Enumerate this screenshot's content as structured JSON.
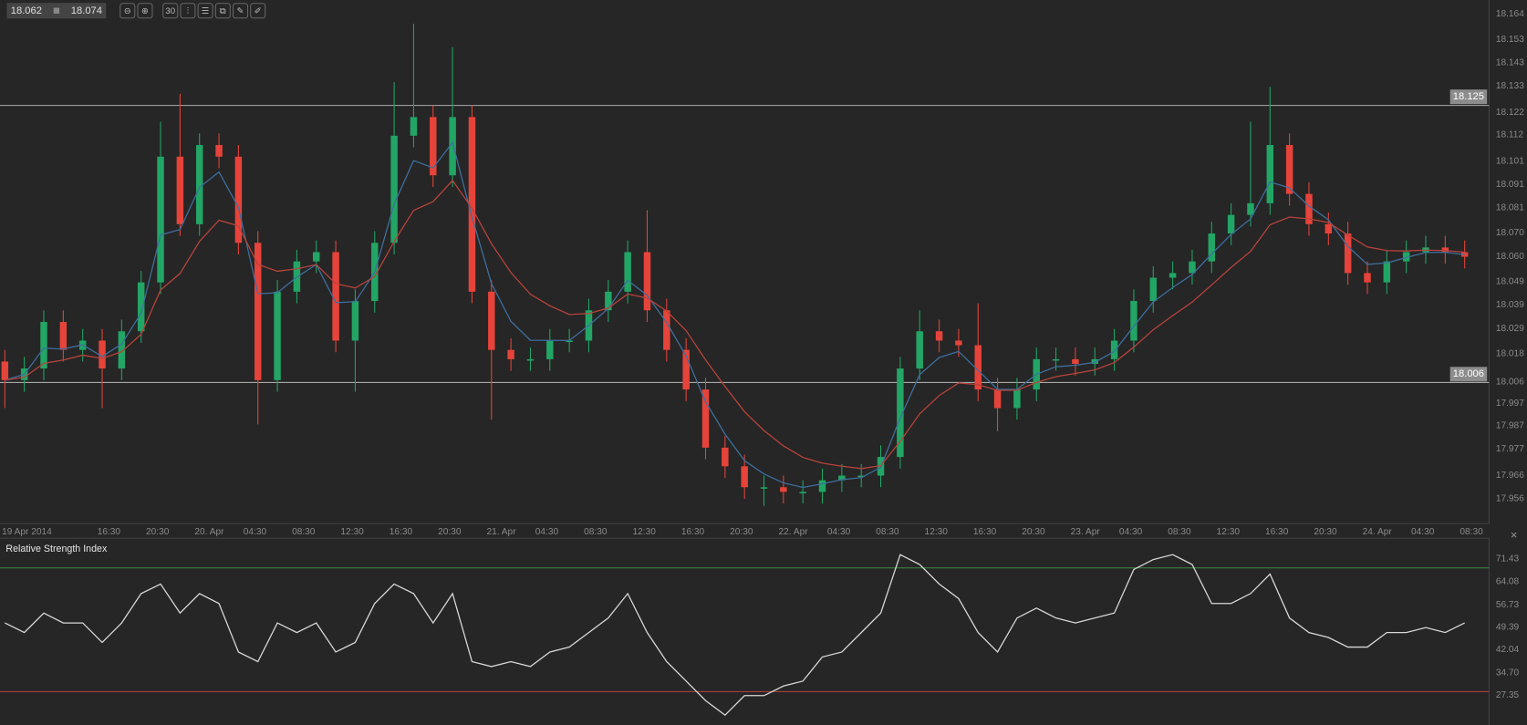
{
  "toolbar": {
    "bid": "18.062",
    "ask": "18.074",
    "icons": [
      {
        "name": "zoom-out-icon",
        "glyph": "⊖"
      },
      {
        "name": "zoom-in-icon",
        "glyph": "⊕"
      },
      {
        "name": "timeframe-icon",
        "glyph": "30"
      },
      {
        "name": "chart-type-icon",
        "glyph": "⫶"
      },
      {
        "name": "indicators-icon",
        "glyph": "☰"
      },
      {
        "name": "templates-icon",
        "glyph": "⧉"
      },
      {
        "name": "edit-icon",
        "glyph": "✎"
      },
      {
        "name": "draw-icon",
        "glyph": "✐"
      }
    ]
  },
  "colors": {
    "background": "#262626",
    "up": "#22a565",
    "down": "#e6433a",
    "ma_fast": "#3e6f9e",
    "ma_slow": "#b8433b",
    "rsi_line": "#d8d8d8",
    "rsi_upper": "#3f8a45",
    "rsi_lower": "#b8433b",
    "level_line": "#a8a8a8"
  },
  "chart_data": [
    {
      "type": "candlestick",
      "ylim": [
        17.9454,
        18.1703
      ],
      "y_ticks": [
        "18.164",
        "18.153",
        "18.143",
        "18.133",
        "18.122",
        "18.112",
        "18.101",
        "18.091",
        "18.081",
        "18.070",
        "18.060",
        "18.049",
        "18.039",
        "18.029",
        "18.018",
        "18.006",
        "17.997",
        "17.987",
        "17.977",
        "17.966",
        "17.956"
      ],
      "x_tick_labels": [
        "19 Apr 2014",
        "16:30",
        "20:30",
        "20. Apr",
        "04:30",
        "08:30",
        "12:30",
        "16:30",
        "20:30",
        "21. Apr",
        "04:30",
        "08:30",
        "12:30",
        "16:30",
        "20:30",
        "22. Apr",
        "04:30",
        "08:30",
        "12:30",
        "16:30",
        "20:30",
        "23. Apr",
        "04:30",
        "08:30",
        "12:30",
        "16:30",
        "20:30",
        "24. Apr",
        "04:30",
        "08:30"
      ],
      "levels": [
        {
          "value": 18.125,
          "label": "18.125"
        },
        {
          "value": 18.006,
          "label": "18.006"
        }
      ],
      "moving_averages": [
        "fast (blue)",
        "slow (red)"
      ],
      "open": [
        18.015,
        18.007,
        18.012,
        18.032,
        18.02,
        18.024,
        18.012,
        18.028,
        18.049,
        18.103,
        18.074,
        18.108,
        18.103,
        18.066,
        18.007,
        18.045,
        18.058,
        18.062,
        18.024,
        18.041,
        18.066,
        18.112,
        18.12,
        18.095,
        18.12,
        18.045,
        18.02,
        18.016,
        18.016,
        18.024,
        18.024,
        18.037,
        18.045,
        18.062,
        18.037,
        18.02,
        18.003,
        17.978,
        17.97,
        17.961,
        17.961,
        17.959,
        17.959,
        17.964,
        17.966,
        17.966,
        17.974,
        18.012,
        18.028,
        18.024,
        18.022,
        18.003,
        17.995,
        18.003,
        18.016,
        18.016,
        18.014,
        18.016,
        18.024,
        18.041,
        18.051,
        18.053,
        18.058,
        18.07,
        18.078,
        18.083,
        18.108,
        18.087,
        18.074,
        18.07,
        18.053,
        18.049,
        18.058,
        18.062,
        18.064,
        18.062
      ],
      "high": [
        18.02,
        18.017,
        18.037,
        18.037,
        18.029,
        18.029,
        18.033,
        18.054,
        18.118,
        18.13,
        18.113,
        18.113,
        18.108,
        18.071,
        18.05,
        18.063,
        18.067,
        18.067,
        18.046,
        18.071,
        18.135,
        18.16,
        18.125,
        18.15,
        18.125,
        18.05,
        18.025,
        18.021,
        18.029,
        18.029,
        18.042,
        18.05,
        18.067,
        18.08,
        18.042,
        18.025,
        18.008,
        17.983,
        17.975,
        17.966,
        17.966,
        17.964,
        17.969,
        17.971,
        17.971,
        17.979,
        18.017,
        18.037,
        18.033,
        18.029,
        18.04,
        18.008,
        18.008,
        18.021,
        18.021,
        18.021,
        18.021,
        18.029,
        18.046,
        18.056,
        18.058,
        18.063,
        18.075,
        18.083,
        18.118,
        18.133,
        18.113,
        18.092,
        18.079,
        18.075,
        18.058,
        18.063,
        18.067,
        18.069,
        18.069,
        18.067
      ],
      "low": [
        17.995,
        18.002,
        18.007,
        18.015,
        18.015,
        17.995,
        18.007,
        18.023,
        18.044,
        18.069,
        18.069,
        18.098,
        18.061,
        17.988,
        18.002,
        18.04,
        18.053,
        18.019,
        18.002,
        18.036,
        18.061,
        18.107,
        18.09,
        18.09,
        18.04,
        17.99,
        18.011,
        18.011,
        18.011,
        18.019,
        18.019,
        18.032,
        18.04,
        18.032,
        18.015,
        17.998,
        17.973,
        17.965,
        17.956,
        17.953,
        17.954,
        17.954,
        17.954,
        17.959,
        17.961,
        17.961,
        17.969,
        18.007,
        18.019,
        18.017,
        17.998,
        17.985,
        17.99,
        17.998,
        18.011,
        18.009,
        18.009,
        18.011,
        18.019,
        18.036,
        18.046,
        18.048,
        18.053,
        18.065,
        18.073,
        18.078,
        18.082,
        18.069,
        18.065,
        18.048,
        18.044,
        18.044,
        18.053,
        18.057,
        18.057,
        18.055
      ],
      "close": [
        18.007,
        18.012,
        18.032,
        18.02,
        18.024,
        18.012,
        18.028,
        18.049,
        18.103,
        18.074,
        18.108,
        18.103,
        18.066,
        18.007,
        18.045,
        18.058,
        18.062,
        18.024,
        18.041,
        18.066,
        18.112,
        18.12,
        18.095,
        18.12,
        18.045,
        18.02,
        18.016,
        18.016,
        18.024,
        18.024,
        18.037,
        18.045,
        18.062,
        18.037,
        18.02,
        18.003,
        17.978,
        17.97,
        17.961,
        17.961,
        17.959,
        17.959,
        17.964,
        17.966,
        17.966,
        17.974,
        18.012,
        18.028,
        18.024,
        18.022,
        18.003,
        17.995,
        18.003,
        18.016,
        18.016,
        18.014,
        18.016,
        18.024,
        18.041,
        18.051,
        18.053,
        18.058,
        18.07,
        18.078,
        18.083,
        18.108,
        18.087,
        18.074,
        18.07,
        18.053,
        18.049,
        18.058,
        18.062,
        18.064,
        18.062,
        18.06
      ]
    },
    {
      "type": "line",
      "title": "Relative Strength Index",
      "ylim": [
        19.2,
        79.0
      ],
      "y_ticks": [
        "71.43",
        "64.08",
        "56.73",
        "49.39",
        "42.04",
        "34.70",
        "27.35"
      ],
      "levels": [
        70,
        30
      ],
      "values": [
        52.2,
        49.1,
        55.4,
        52.2,
        52.2,
        45.9,
        52.2,
        61.7,
        64.8,
        55.4,
        61.7,
        58.5,
        42.8,
        39.7,
        52.2,
        49.1,
        52.2,
        42.8,
        45.9,
        58.5,
        64.8,
        61.7,
        52.2,
        61.7,
        39.7,
        38.1,
        39.7,
        38.1,
        42.8,
        44.4,
        49.1,
        53.8,
        61.7,
        49.1,
        39.7,
        33.4,
        27.1,
        22.4,
        28.7,
        28.7,
        31.8,
        33.4,
        41.2,
        42.8,
        49.1,
        55.4,
        74.3,
        71.1,
        64.8,
        60.1,
        49.1,
        42.8,
        53.8,
        57.0,
        53.8,
        52.2,
        53.8,
        55.4,
        69.5,
        72.7,
        74.3,
        71.1,
        58.5,
        58.5,
        61.7,
        68.0,
        53.8,
        49.1,
        47.5,
        44.4,
        44.4,
        49.1,
        49.1,
        50.7,
        49.1,
        52.2
      ]
    }
  ],
  "rsi_close_label": "×"
}
